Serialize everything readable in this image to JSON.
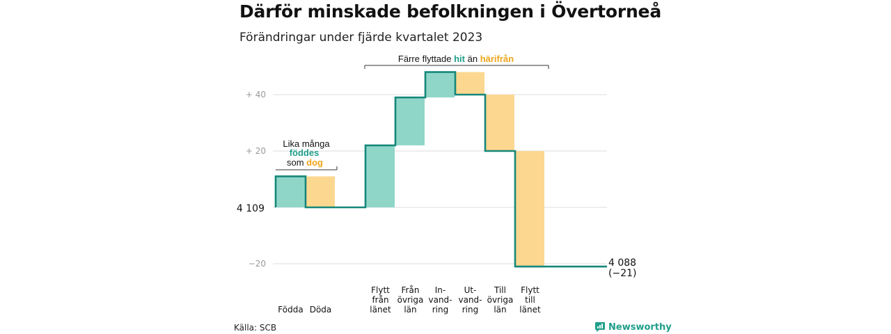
{
  "title": "Därför minskade befolkningen i Övertorneå",
  "subtitle": "Förändringar under fjärde kvartalet 2023",
  "source": "Källa: SCB",
  "brand": {
    "name": "Newsworthy",
    "icon": "newsworthy-logo-icon"
  },
  "colors": {
    "increase": "#8fd6c9",
    "decrease": "#fbd78f",
    "line": "#15877a",
    "accent_green": "#1f9e8a",
    "accent_orange": "#eda51b"
  },
  "chart_data": {
    "type": "waterfall",
    "start": {
      "label": "4 109",
      "value": 0
    },
    "end": {
      "label": "4 088",
      "note": "(−21)",
      "value": -21
    },
    "steps": [
      {
        "category": [
          "Födda"
        ],
        "delta": 11,
        "kind": "increase"
      },
      {
        "category": [
          "Döda"
        ],
        "delta": -11,
        "kind": "decrease"
      },
      {
        "category": [
          "Flytt",
          "från",
          "länet"
        ],
        "delta": 22,
        "kind": "increase"
      },
      {
        "category": [
          "Från",
          "övriga",
          "län"
        ],
        "delta": 17,
        "kind": "increase"
      },
      {
        "category": [
          "In-",
          "vand-",
          "ring"
        ],
        "delta": 9,
        "kind": "increase"
      },
      {
        "category": [
          "Ut-",
          "vand-",
          "ring"
        ],
        "delta": -8,
        "kind": "decrease"
      },
      {
        "category": [
          "Till",
          "övriga",
          "län"
        ],
        "delta": -20,
        "kind": "decrease"
      },
      {
        "category": [
          "Flytt",
          "till",
          "länet"
        ],
        "delta": -41,
        "kind": "decrease"
      }
    ],
    "yticks": [
      {
        "value": 40,
        "label": "+  40"
      },
      {
        "value": 20,
        "label": "+  20"
      },
      {
        "value": -20,
        "label": "−20"
      }
    ],
    "ylim": [
      -25,
      50
    ],
    "annotations": {
      "births": {
        "line1": "Lika många",
        "hl1": "föddes",
        "pre3": "som ",
        "hl2": "dog"
      },
      "migration": {
        "pre": "Färre flyttade ",
        "hl1": "hit",
        "mid": " än ",
        "hl2": "härifrån"
      }
    }
  }
}
